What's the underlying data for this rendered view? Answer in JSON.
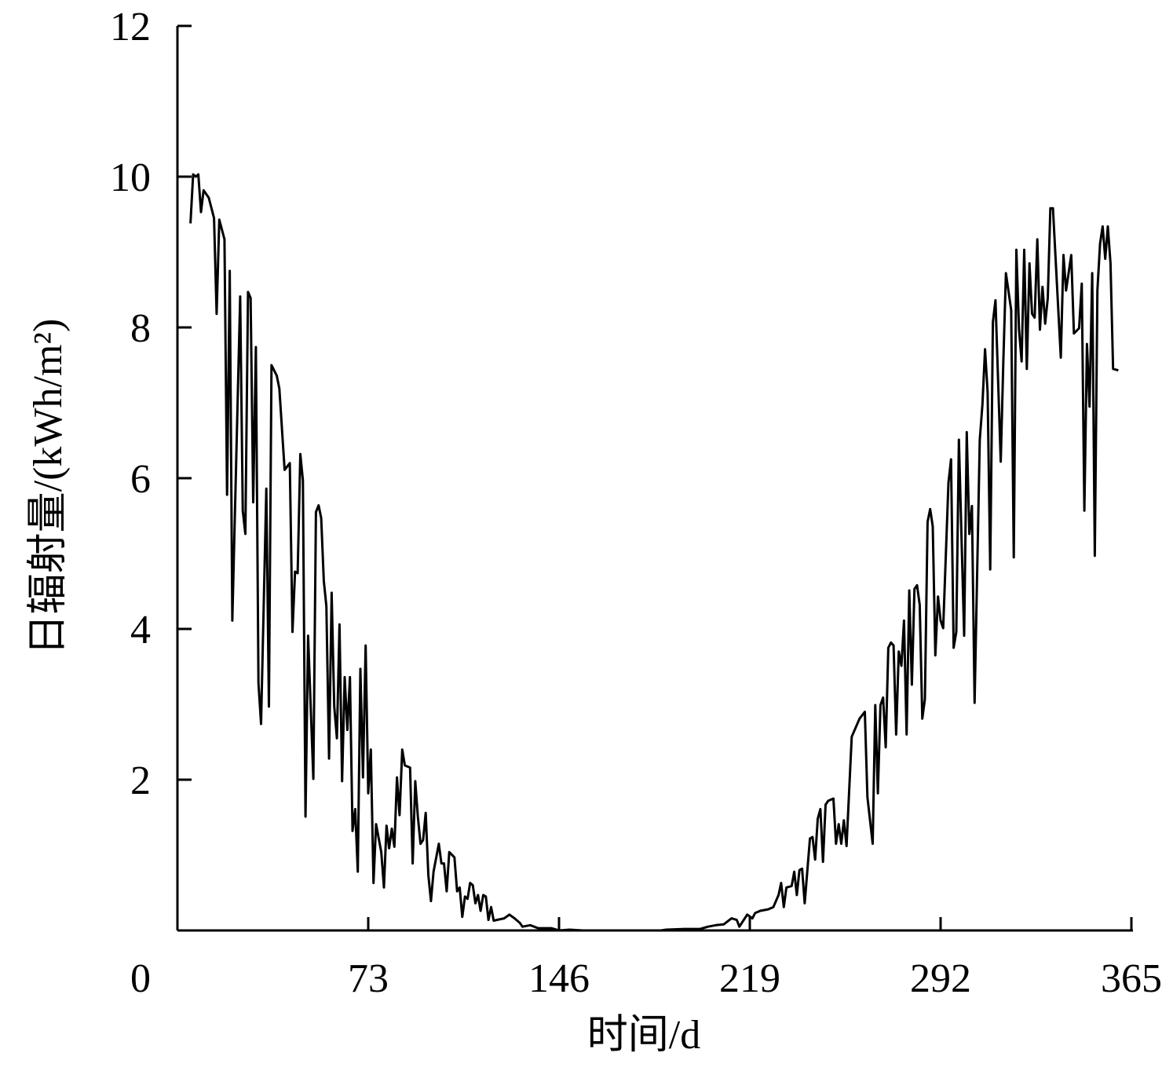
{
  "chart_data": {
    "type": "line",
    "xlabel": "时间/d",
    "ylabel": "日辐射量/(kWh/m²)",
    "xlim": [
      0,
      365
    ],
    "xticks": [
      73,
      146,
      219,
      292,
      365
    ],
    "ylim": [
      0,
      12
    ],
    "yticks": [
      0,
      2,
      4,
      6,
      8,
      10,
      12
    ],
    "color": "#000000",
    "x": [
      5,
      6,
      7,
      8,
      9,
      10,
      12,
      14,
      15,
      16,
      18,
      19,
      20,
      21,
      24,
      25,
      26,
      27,
      28,
      29,
      30,
      31,
      32,
      34,
      35,
      36,
      38,
      39,
      41,
      43,
      44,
      45,
      46,
      47,
      48,
      49,
      50,
      52,
      53,
      54,
      55,
      56,
      57,
      58,
      59,
      60,
      61,
      62,
      63,
      64,
      65,
      66,
      67,
      68,
      69,
      70,
      71,
      72,
      73,
      74,
      75,
      76,
      78,
      79,
      80,
      81,
      82,
      83,
      84,
      85,
      86,
      87,
      89,
      90,
      91,
      92,
      93,
      94,
      95,
      96,
      97,
      98,
      100,
      101,
      102,
      103,
      104,
      106,
      107,
      108,
      109,
      110,
      111,
      112,
      113,
      114,
      115,
      116,
      117,
      118,
      119,
      120,
      121,
      125,
      127,
      129,
      131,
      132,
      135,
      138,
      143,
      146,
      150,
      155,
      160,
      165,
      170,
      175,
      180,
      185,
      187,
      194,
      200,
      203,
      206,
      209,
      212,
      214,
      215,
      218,
      220,
      221,
      223,
      226,
      228,
      230,
      231,
      232,
      233,
      235,
      236,
      237,
      238,
      239,
      240,
      242,
      243,
      244,
      245,
      246,
      247,
      248,
      249,
      251,
      252,
      253,
      254,
      255,
      256,
      258,
      261,
      263,
      264,
      266,
      267,
      268,
      269,
      270,
      271,
      272,
      273,
      274,
      275,
      276,
      277,
      278,
      279,
      280,
      281,
      282,
      283,
      284,
      285,
      286,
      287,
      288,
      289,
      290,
      291,
      292,
      293,
      295,
      296,
      297,
      298,
      299,
      301,
      302,
      303,
      304,
      305,
      307,
      308,
      309,
      310,
      311,
      312,
      313,
      315,
      316,
      317,
      319,
      320,
      321,
      322,
      323,
      324,
      325,
      326,
      327,
      328,
      329,
      330,
      331,
      332,
      333,
      334,
      335,
      338,
      339,
      340,
      342,
      343,
      345,
      346,
      347,
      348,
      349,
      350,
      351,
      352,
      353,
      354,
      355,
      356,
      357,
      358,
      360
    ],
    "values": [
      9.38,
      10.03,
      10.0,
      10.03,
      9.53,
      9.82,
      9.72,
      9.45,
      8.18,
      9.43,
      9.17,
      5.78,
      8.75,
      4.11,
      8.41,
      5.57,
      5.26,
      8.47,
      8.39,
      5.68,
      7.74,
      3.28,
      2.74,
      5.86,
      2.97,
      7.5,
      7.36,
      7.19,
      6.11,
      6.2,
      3.96,
      4.76,
      4.74,
      6.32,
      5.97,
      1.51,
      3.91,
      2.01,
      5.55,
      5.64,
      5.47,
      4.64,
      4.3,
      2.28,
      4.48,
      2.97,
      2.55,
      4.06,
      1.98,
      3.36,
      2.66,
      3.36,
      1.32,
      1.61,
      0.78,
      3.47,
      2.03,
      3.78,
      1.82,
      2.4,
      0.63,
      1.41,
      1.04,
      0.57,
      1.39,
      1.09,
      1.35,
      1.11,
      2.03,
      1.53,
      2.4,
      2.19,
      2.16,
      0.89,
      1.98,
      1.51,
      1.15,
      1.2,
      1.56,
      0.73,
      0.39,
      0.78,
      1.15,
      0.89,
      0.89,
      0.52,
      1.04,
      0.97,
      0.52,
      0.57,
      0.18,
      0.45,
      0.42,
      0.63,
      0.6,
      0.36,
      0.47,
      0.26,
      0.47,
      0.45,
      0.14,
      0.31,
      0.13,
      0.16,
      0.21,
      0.16,
      0.1,
      0.05,
      0.07,
      0.03,
      0.03,
      0,
      0.01,
      0,
      0,
      0,
      0,
      0,
      0,
      0,
      0.01,
      0.02,
      0.02,
      0.05,
      0.07,
      0.08,
      0.16,
      0.14,
      0.05,
      0.21,
      0.16,
      0.23,
      0.26,
      0.28,
      0.31,
      0.47,
      0.63,
      0.31,
      0.57,
      0.59,
      0.78,
      0.47,
      0.8,
      0.82,
      0.36,
      1.22,
      1.24,
      0.94,
      1.48,
      1.61,
      0.91,
      1.67,
      1.72,
      1.75,
      1.15,
      1.41,
      1.15,
      1.46,
      1.12,
      2.57,
      2.81,
      2.9,
      1.77,
      1.15,
      2.99,
      1.82,
      2.99,
      3.09,
      2.43,
      3.75,
      3.82,
      3.78,
      2.6,
      3.7,
      3.51,
      4.11,
      2.6,
      4.51,
      3.26,
      4.53,
      4.58,
      4.32,
      2.81,
      3.07,
      5.42,
      5.59,
      5.36,
      3.65,
      4.43,
      4.11,
      4.01,
      5.94,
      6.25,
      3.75,
      3.96,
      6.51,
      3.91,
      6.61,
      5.26,
      5.63,
      3.02,
      6.51,
      6.98,
      7.71,
      7.14,
      4.79,
      8.07,
      8.36,
      6.22,
      7.55,
      8.72,
      8.23,
      4.95,
      9.03,
      7.97,
      7.55,
      9.03,
      7.45,
      8.85,
      8.18,
      8.13,
      9.17,
      7.97,
      8.54,
      8.05,
      8.39,
      9.58,
      9.58,
      7.6,
      8.96,
      8.49,
      8.96,
      7.92,
      7.99,
      8.58,
      5.57,
      7.78,
      6.95,
      8.72,
      4.97,
      8.49,
      9.11,
      9.34,
      8.91,
      9.34,
      8.85,
      7.45,
      7.43
    ]
  }
}
